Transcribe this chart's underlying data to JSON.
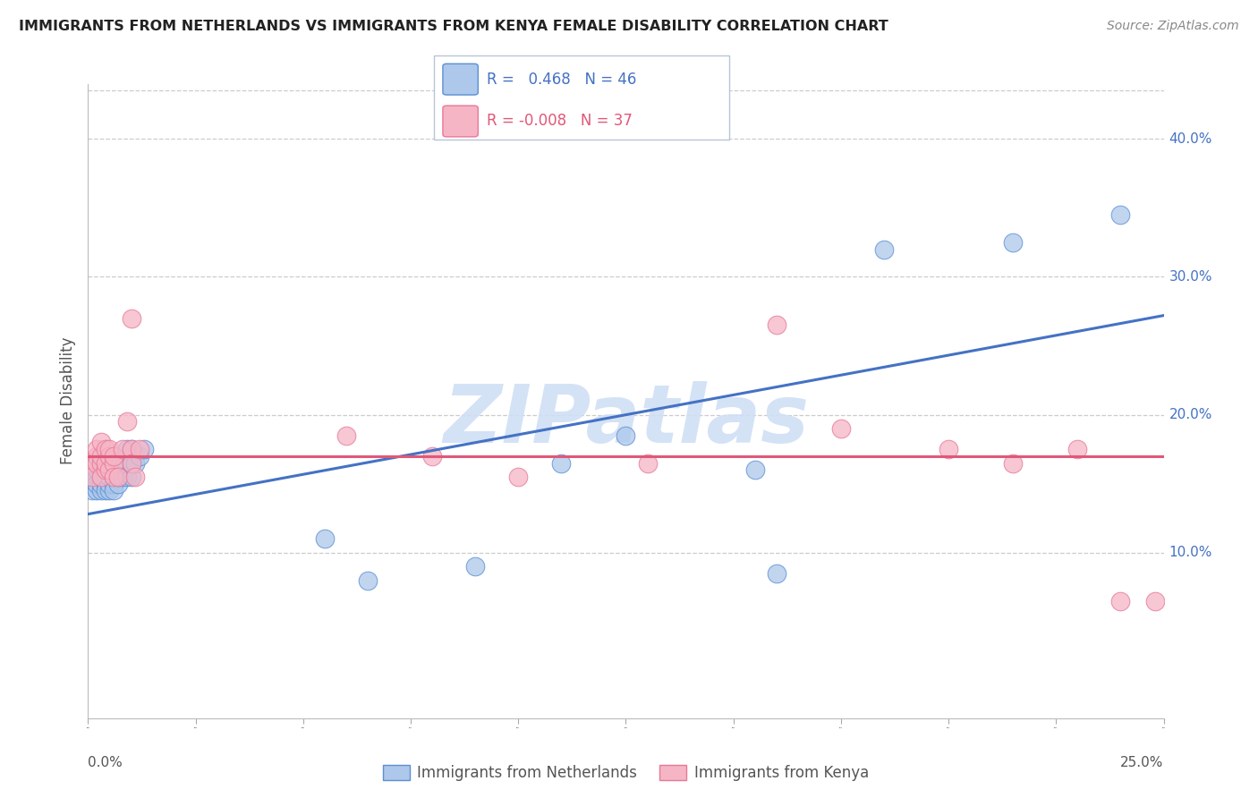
{
  "title": "IMMIGRANTS FROM NETHERLANDS VS IMMIGRANTS FROM KENYA FEMALE DISABILITY CORRELATION CHART",
  "source": "Source: ZipAtlas.com",
  "ylabel": "Female Disability",
  "x_min": 0.0,
  "x_max": 0.25,
  "y_min": -0.02,
  "y_max": 0.44,
  "y_ticks": [
    0.1,
    0.2,
    0.3,
    0.4
  ],
  "y_tick_labels": [
    "10.0%",
    "20.0%",
    "30.0%",
    "40.0%"
  ],
  "netherlands_R": 0.468,
  "netherlands_N": 46,
  "kenya_R": -0.008,
  "kenya_N": 37,
  "nl_color": "#adc8ea",
  "ke_color": "#f5b5c5",
  "nl_edge_color": "#5b8fd4",
  "ke_edge_color": "#e87898",
  "nl_line_color": "#4472c4",
  "ke_line_color": "#e05878",
  "right_tick_color": "#4472c4",
  "watermark_color": "#d0dff5",
  "nl_trend_x0": 0.0,
  "nl_trend_y0": 0.128,
  "nl_trend_x1": 0.25,
  "nl_trend_y1": 0.272,
  "ke_trend_x0": 0.0,
  "ke_trend_y0": 0.17,
  "ke_trend_x1": 0.25,
  "ke_trend_y1": 0.17,
  "nl_x": [
    0.001,
    0.001,
    0.001,
    0.002,
    0.002,
    0.002,
    0.002,
    0.003,
    0.003,
    0.003,
    0.003,
    0.003,
    0.004,
    0.004,
    0.004,
    0.004,
    0.005,
    0.005,
    0.005,
    0.005,
    0.006,
    0.006,
    0.006,
    0.007,
    0.007,
    0.007,
    0.008,
    0.008,
    0.009,
    0.009,
    0.01,
    0.01,
    0.01,
    0.011,
    0.012,
    0.013,
    0.055,
    0.065,
    0.09,
    0.11,
    0.125,
    0.155,
    0.16,
    0.185,
    0.215,
    0.24
  ],
  "nl_y": [
    0.155,
    0.16,
    0.145,
    0.155,
    0.16,
    0.145,
    0.15,
    0.145,
    0.15,
    0.16,
    0.165,
    0.155,
    0.15,
    0.155,
    0.16,
    0.145,
    0.145,
    0.15,
    0.155,
    0.16,
    0.15,
    0.155,
    0.145,
    0.15,
    0.155,
    0.16,
    0.155,
    0.165,
    0.155,
    0.175,
    0.155,
    0.165,
    0.175,
    0.165,
    0.17,
    0.175,
    0.11,
    0.08,
    0.09,
    0.165,
    0.185,
    0.16,
    0.085,
    0.32,
    0.325,
    0.345
  ],
  "ke_x": [
    0.001,
    0.001,
    0.002,
    0.002,
    0.002,
    0.003,
    0.003,
    0.003,
    0.003,
    0.004,
    0.004,
    0.004,
    0.005,
    0.005,
    0.005,
    0.006,
    0.006,
    0.006,
    0.007,
    0.008,
    0.009,
    0.01,
    0.01,
    0.01,
    0.011,
    0.012,
    0.06,
    0.08,
    0.1,
    0.13,
    0.16,
    0.175,
    0.2,
    0.215,
    0.23,
    0.24,
    0.248
  ],
  "ke_y": [
    0.165,
    0.155,
    0.17,
    0.165,
    0.175,
    0.165,
    0.17,
    0.18,
    0.155,
    0.16,
    0.165,
    0.175,
    0.16,
    0.17,
    0.175,
    0.165,
    0.17,
    0.155,
    0.155,
    0.175,
    0.195,
    0.27,
    0.175,
    0.165,
    0.155,
    0.175,
    0.185,
    0.17,
    0.155,
    0.165,
    0.265,
    0.19,
    0.175,
    0.165,
    0.175,
    0.065,
    0.065
  ]
}
